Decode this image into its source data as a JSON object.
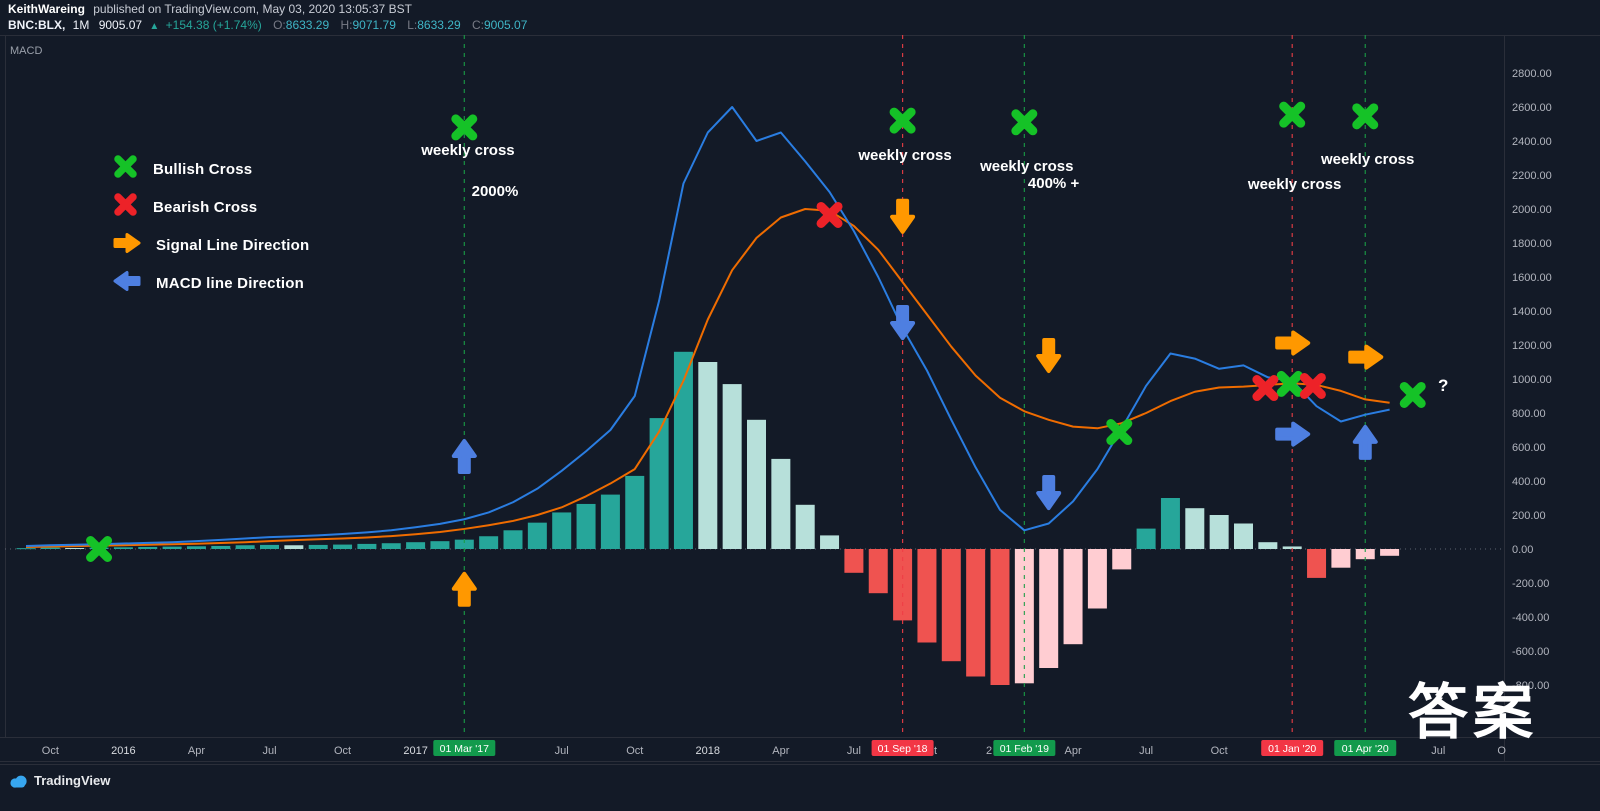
{
  "header": {
    "publisher": {
      "name": "KeithWareing",
      "rest": "published on TradingView.com, May 03, 2020 13:05:37 BST"
    },
    "symbol": {
      "name": "BNC:BLX,",
      "interval": "1M",
      "price": "9005.07",
      "direction": "▲",
      "change": "+154.38 (+1.74%)",
      "o_label": "O:",
      "o": "8633.29",
      "h_label": "H:",
      "h": "9071.79",
      "l_label": "L:",
      "l": "8633.29",
      "c_label": "C:",
      "c": "9005.07"
    }
  },
  "pane": {
    "title": "MACD"
  },
  "legend": {
    "items": [
      {
        "icon": "bullish-cross-icon",
        "label": "Bullish Cross"
      },
      {
        "icon": "bearish-cross-icon",
        "label": "Bearish Cross"
      },
      {
        "icon": "signal-arrow-icon",
        "label": "Signal Line Direction"
      },
      {
        "icon": "macd-arrow-icon",
        "label": "MACD line Direction"
      }
    ]
  },
  "footer": {
    "brand": "TradingView"
  },
  "watermark": "答案",
  "colors": {
    "background": "#131a27",
    "pane_border": "#2a2e39",
    "axis_text": "#b2b5be",
    "year_text": "#d8dbe0",
    "bullish": "#15c227",
    "bearish": "#ed2228",
    "signal_arrow": "#ff9800",
    "macd_arrow": "#4e7fe1",
    "macd_line": "#2a7de1",
    "signal_line": "#ef6c00",
    "hist_grow_above": "#26a69a",
    "hist_fall_above": "#b7e0da",
    "hist_fall_below": "#ef5350",
    "hist_grow_below": "#ffcdd2",
    "event_green": "#1a9e47",
    "event_red": "#f03e46",
    "badge_green": "#129a4c",
    "badge_red": "#f23645",
    "zero_line": "#6b7280"
  },
  "chart_data": {
    "type": "bar",
    "subtype": "macd-histogram-with-macd-and-signal-lines",
    "title": "MACD",
    "x_unit": "month",
    "x_start": "2015-09",
    "ylim": [
      -900,
      2900
    ],
    "grid": "none",
    "zero_line": true,
    "legend_position": "top-left",
    "y_ticks": [
      2800,
      2600,
      2400,
      2200,
      2000,
      1800,
      1600,
      1400,
      1200,
      1000,
      800,
      600,
      400,
      200,
      0,
      -200,
      -400,
      -600,
      -800
    ],
    "histogram": [
      5,
      8,
      6,
      8,
      10,
      12,
      14,
      16,
      18,
      22,
      24,
      22,
      24,
      26,
      30,
      34,
      40,
      46,
      55,
      75,
      110,
      155,
      215,
      265,
      320,
      430,
      770,
      1160,
      1100,
      970,
      760,
      530,
      260,
      80,
      -140,
      -260,
      -420,
      -550,
      -660,
      -750,
      -800,
      -790,
      -700,
      -560,
      -350,
      -120,
      120,
      300,
      240,
      200,
      150,
      40,
      15,
      -170,
      -110,
      -60,
      -40
    ],
    "series": [
      {
        "name": "MACD line",
        "values": [
          18,
          22,
          25,
          28,
          32,
          36,
          40,
          46,
          54,
          62,
          70,
          74,
          80,
          88,
          98,
          110,
          128,
          148,
          175,
          215,
          275,
          355,
          460,
          575,
          700,
          900,
          1460,
          2150,
          2450,
          2600,
          2400,
          2450,
          2280,
          2100,
          1870,
          1600,
          1300,
          1050,
          760,
          480,
          230,
          110,
          150,
          280,
          470,
          710,
          960,
          1150,
          1120,
          1060,
          1080,
          1010,
          990,
          840,
          750,
          790,
          820
        ]
      },
      {
        "name": "Signal line",
        "values": [
          12,
          14,
          17,
          20,
          22,
          25,
          28,
          31,
          35,
          40,
          46,
          52,
          57,
          62,
          68,
          76,
          87,
          100,
          118,
          140,
          165,
          200,
          245,
          310,
          385,
          470,
          690,
          990,
          1350,
          1640,
          1830,
          1950,
          2000,
          1990,
          1900,
          1760,
          1570,
          1380,
          1190,
          1020,
          890,
          810,
          760,
          720,
          710,
          740,
          800,
          870,
          925,
          950,
          955,
          965,
          975,
          965,
          930,
          880,
          860
        ]
      }
    ],
    "x_ticks": [
      {
        "label": "Oct",
        "mi": 1
      },
      {
        "label": "2016",
        "mi": 4,
        "year": true
      },
      {
        "label": "Apr",
        "mi": 7
      },
      {
        "label": "Jul",
        "mi": 10
      },
      {
        "label": "Oct",
        "mi": 13
      },
      {
        "label": "2017",
        "mi": 16,
        "year": true
      },
      {
        "label": "Jul",
        "mi": 22
      },
      {
        "label": "Oct",
        "mi": 25
      },
      {
        "label": "2018",
        "mi": 28,
        "year": true
      },
      {
        "label": "Apr",
        "mi": 31
      },
      {
        "label": "Jul",
        "mi": 34
      },
      {
        "label": "t",
        "mi": 37.35
      },
      {
        "label": "2",
        "mi": 39.55
      },
      {
        "label": "Apr",
        "mi": 43
      },
      {
        "label": "Jul",
        "mi": 46
      },
      {
        "label": "Oct",
        "mi": 49
      },
      {
        "label": "Jul",
        "mi": 58
      },
      {
        "label": "O",
        "mi": 60.6
      }
    ],
    "event_lines": [
      {
        "label": "01 Mar '17",
        "mi": 18,
        "tone": "green"
      },
      {
        "label": "01 Sep '18",
        "mi": 36,
        "tone": "red"
      },
      {
        "label": "01 Feb '19",
        "mi": 41,
        "tone": "green"
      },
      {
        "label": "01 Jan '20",
        "mi": 52,
        "tone": "red"
      },
      {
        "label": "01 Apr '20",
        "mi": 55,
        "tone": "green"
      }
    ],
    "markers": [
      {
        "kind": "bullish",
        "mi": 3.0,
        "val": 0
      },
      {
        "kind": "bullish",
        "mi": 18,
        "val": 2480
      },
      {
        "kind": "bullish",
        "mi": 36,
        "val": 2520
      },
      {
        "kind": "bullish",
        "mi": 41,
        "val": 2510
      },
      {
        "kind": "bullish",
        "mi": 44.9,
        "val": 688
      },
      {
        "kind": "bullish",
        "mi": 51.9,
        "val": 971
      },
      {
        "kind": "bullish",
        "mi": 52,
        "val": 2555
      },
      {
        "kind": "bullish",
        "mi": 55,
        "val": 2545
      },
      {
        "kind": "bullish",
        "mi": 56.95,
        "val": 906
      },
      {
        "kind": "bearish",
        "mi": 33,
        "val": 1965
      },
      {
        "kind": "bearish",
        "mi": 50.9,
        "val": 947
      },
      {
        "kind": "bearish",
        "mi": 52.85,
        "val": 959
      },
      {
        "kind": "signal",
        "dir": "up",
        "mi": 18,
        "val": -240
      },
      {
        "kind": "signal",
        "dir": "down",
        "mi": 36,
        "val": 1960
      },
      {
        "kind": "signal",
        "dir": "down",
        "mi": 42,
        "val": 1141
      },
      {
        "kind": "signal",
        "dir": "right",
        "mi": 52,
        "val": 1212
      },
      {
        "kind": "signal",
        "dir": "right",
        "mi": 55,
        "val": 1129
      },
      {
        "kind": "macd",
        "dir": "up",
        "mi": 18,
        "val": 541
      },
      {
        "kind": "macd",
        "dir": "down",
        "mi": 36,
        "val": 1335
      },
      {
        "kind": "macd",
        "dir": "down",
        "mi": 42,
        "val": 335
      },
      {
        "kind": "macd",
        "dir": "right",
        "mi": 52,
        "val": 676
      },
      {
        "kind": "macd",
        "dir": "up",
        "mi": 55,
        "val": 624
      }
    ],
    "annotations": [
      {
        "text": "weekly cross",
        "mi": 18.15,
        "val": 2318,
        "size": 15
      },
      {
        "text": "2000%",
        "mi": 19.26,
        "val": 2076,
        "size": 15
      },
      {
        "text": "weekly cross",
        "mi": 36.1,
        "val": 2288,
        "size": 15
      },
      {
        "text": "weekly cross",
        "mi": 41.1,
        "val": 2224,
        "size": 15
      },
      {
        "text": "400% +",
        "mi": 42.2,
        "val": 2124,
        "size": 15
      },
      {
        "text": "weekly cross",
        "mi": 52.1,
        "val": 2118,
        "size": 15
      },
      {
        "text": "weekly cross",
        "mi": 55.1,
        "val": 2265,
        "size": 15
      },
      {
        "text": "?",
        "mi": 58.2,
        "val": 930,
        "size": 17
      }
    ]
  }
}
